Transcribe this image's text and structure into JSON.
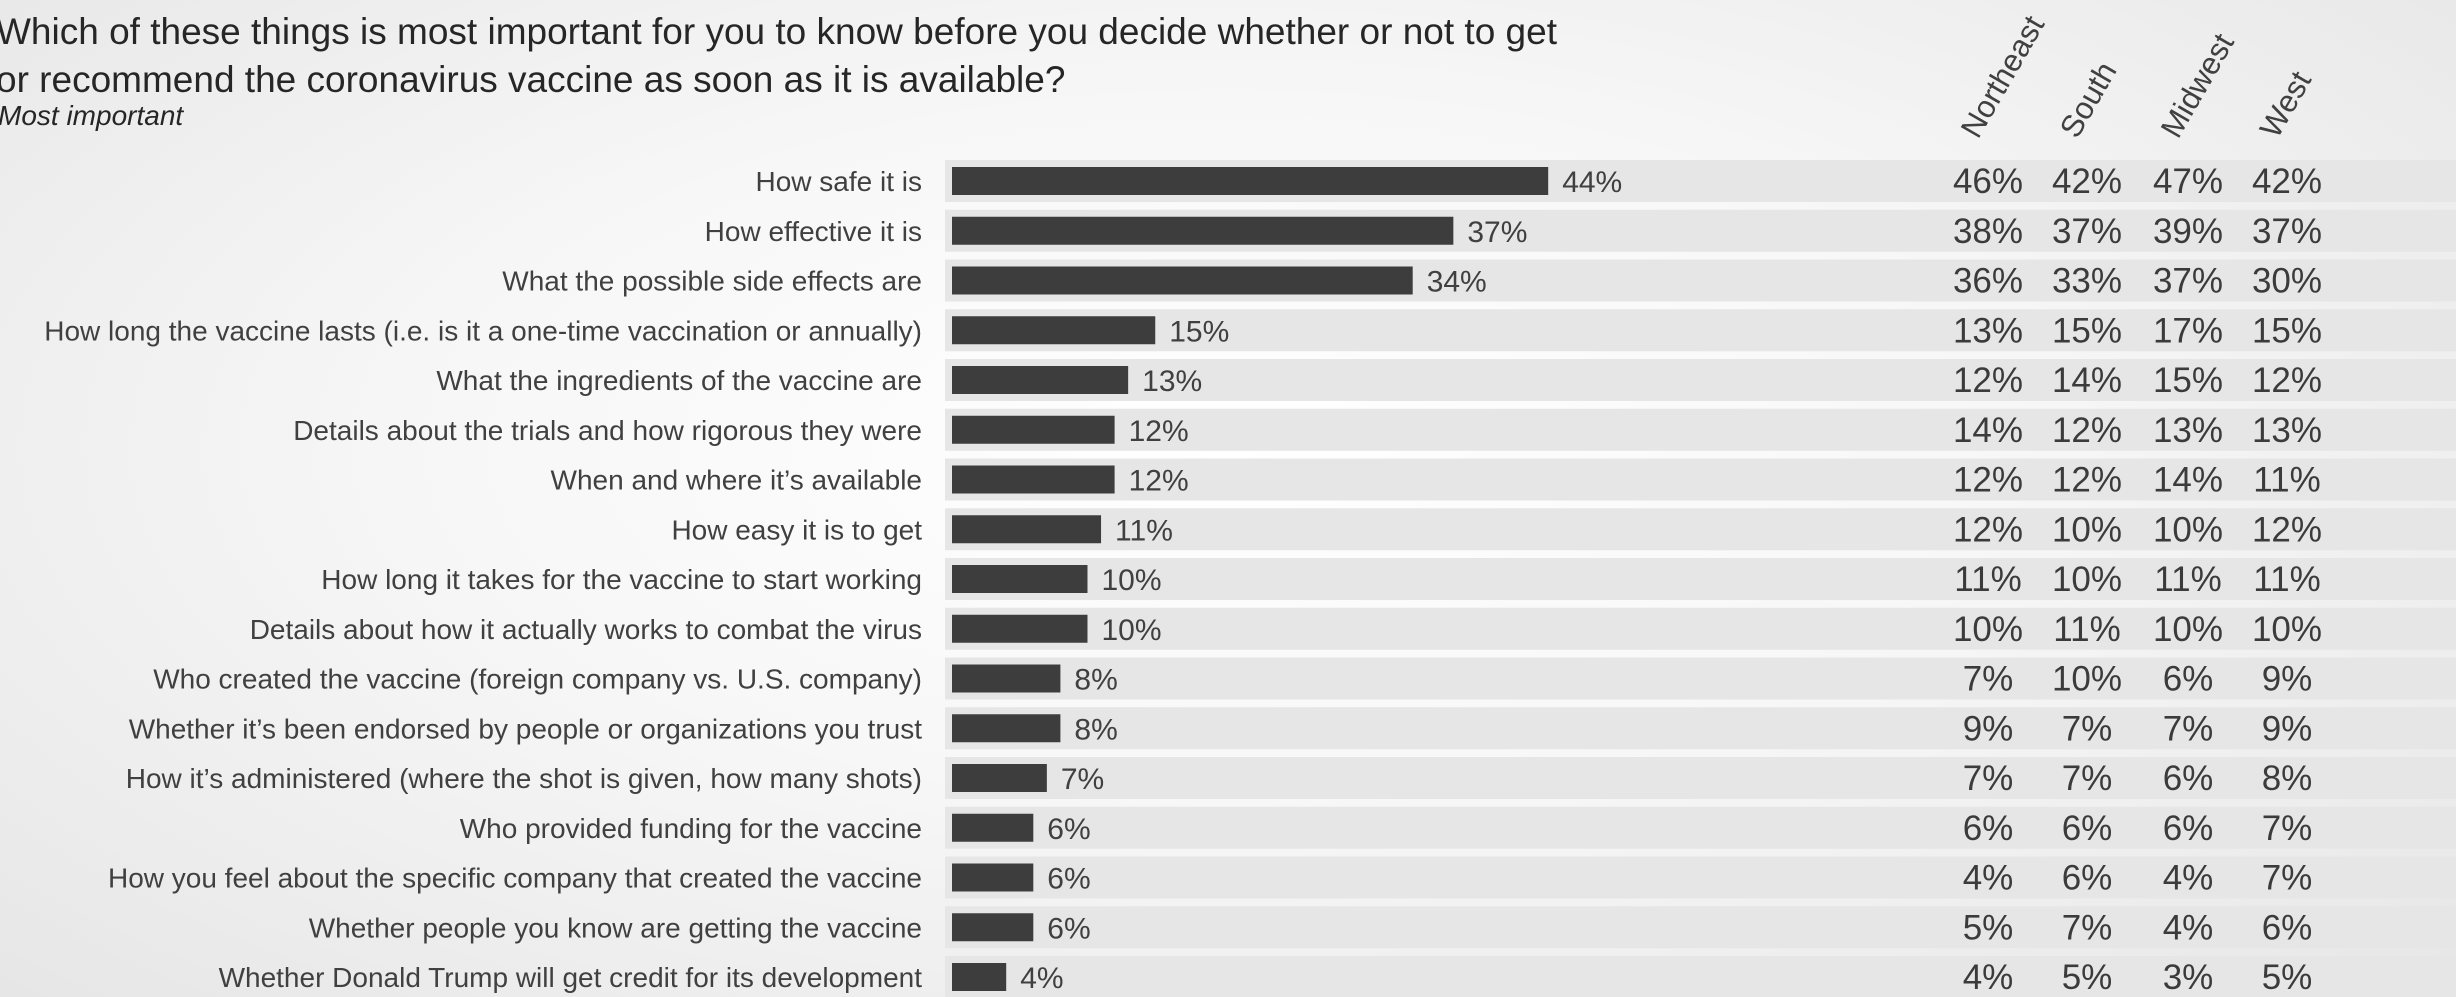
{
  "title_lines": [
    "Which of these things is most important for you to know before you decide whether or not to get",
    "or recommend the coronavirus vaccine as soon as it is available?"
  ],
  "subtitle": "Most important",
  "colors": {
    "bar": "#3d3d3d",
    "band": "#e6e6e6",
    "text": "#404040"
  },
  "chart_data": {
    "type": "bar",
    "orientation": "horizontal",
    "categories": [
      "How safe it is",
      "How effective it is",
      "What the possible side effects are",
      "How long the vaccine lasts (i.e. is it a one-time vaccination or annually)",
      "What the ingredients of the vaccine are",
      "Details about the trials and how rigorous they were",
      "When and where it’s available",
      "How easy it is to get",
      "How long it takes for the vaccine to start working",
      "Details about how it actually works to combat the virus",
      "Who created the vaccine (foreign company vs. U.S. company)",
      "Whether it’s been endorsed by people or organizations you trust",
      "How it’s administered (where the shot is given, how many shots)",
      "Who provided funding for the vaccine",
      "How you feel about the specific company that created the vaccine",
      "Whether people you know are getting the vaccine",
      "Whether Donald Trump will get credit for its development"
    ],
    "values": [
      44,
      37,
      34,
      15,
      13,
      12,
      12,
      11,
      10,
      10,
      8,
      8,
      7,
      6,
      6,
      6,
      4
    ],
    "value_labels": [
      "44%",
      "37%",
      "34%",
      "15%",
      "13%",
      "12%",
      "12%",
      "11%",
      "10%",
      "10%",
      "8%",
      "8%",
      "7%",
      "6%",
      "6%",
      "6%",
      "4%"
    ],
    "xlim": [
      0,
      50
    ],
    "regions": [
      {
        "name": "Northeast",
        "values": [
          "46%",
          "38%",
          "36%",
          "13%",
          "12%",
          "14%",
          "12%",
          "12%",
          "11%",
          "10%",
          "7%",
          "9%",
          "7%",
          "6%",
          "4%",
          "5%",
          "4%"
        ]
      },
      {
        "name": "South",
        "values": [
          "42%",
          "37%",
          "33%",
          "15%",
          "14%",
          "12%",
          "12%",
          "10%",
          "10%",
          "11%",
          "10%",
          "7%",
          "7%",
          "6%",
          "6%",
          "7%",
          "5%"
        ]
      },
      {
        "name": "Midwest",
        "values": [
          "47%",
          "39%",
          "37%",
          "17%",
          "15%",
          "13%",
          "14%",
          "10%",
          "11%",
          "10%",
          "6%",
          "7%",
          "6%",
          "6%",
          "4%",
          "4%",
          "3%"
        ]
      },
      {
        "name": "West",
        "values": [
          "42%",
          "37%",
          "30%",
          "15%",
          "12%",
          "13%",
          "11%",
          "12%",
          "11%",
          "10%",
          "9%",
          "9%",
          "8%",
          "7%",
          "7%",
          "6%",
          "5%"
        ]
      }
    ]
  }
}
